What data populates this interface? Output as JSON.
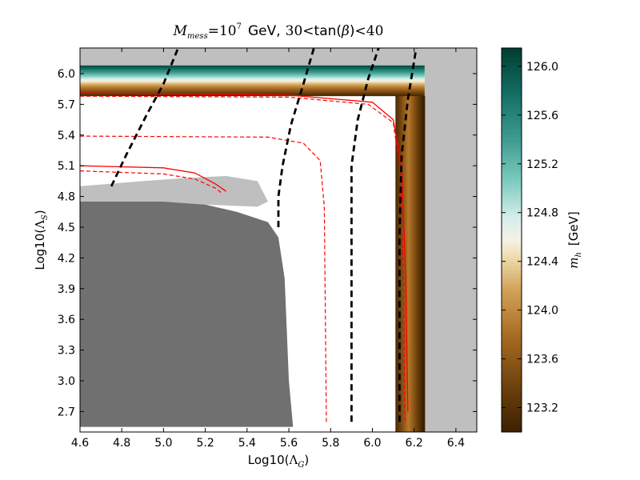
{
  "chart_data": {
    "type": "heatmap",
    "title": {
      "mess_symbol": "M",
      "mess_subscript": "mess",
      "mess_value": "=10",
      "mess_exponent": "7",
      "unit": "GeV,",
      "tan_lower": "30",
      "tan_label": "tan(",
      "beta_symbol": "β",
      "tan_close": ")",
      "tan_upper": "40",
      "lt": "<"
    },
    "xlabel": {
      "prefix": "Log10(",
      "symbol": "Λ",
      "subscript": "G",
      "suffix": ")"
    },
    "ylabel": {
      "prefix": "Log10(",
      "symbol": "Λ",
      "subscript": "S",
      "suffix": ")"
    },
    "xlim": [
      4.6,
      6.5
    ],
    "ylim": [
      2.5,
      6.25
    ],
    "xticks": [
      "4.6",
      "4.8",
      "5.0",
      "5.2",
      "5.4",
      "5.6",
      "5.8",
      "6.0",
      "6.2",
      "6.4"
    ],
    "yticks": [
      "2.7",
      "3.0",
      "3.3",
      "3.6",
      "3.9",
      "4.2",
      "4.5",
      "4.8",
      "5.1",
      "5.4",
      "5.7",
      "6.0"
    ],
    "colorbar": {
      "label": "m",
      "label_subscript": "h",
      "label_unit": "[GeV]",
      "range": [
        123.0,
        126.15
      ],
      "ticks": [
        "123.2",
        "123.6",
        "124.0",
        "124.4",
        "124.8",
        "125.2",
        "125.6",
        "126.0"
      ],
      "colormap": [
        [
          0.0,
          "#3b2103"
        ],
        [
          0.12,
          "#6e420e"
        ],
        [
          0.25,
          "#a86b22"
        ],
        [
          0.37,
          "#d2a25a"
        ],
        [
          0.46,
          "#f0dfb2"
        ],
        [
          0.5,
          "#f5f2e8"
        ],
        [
          0.56,
          "#d4ede9"
        ],
        [
          0.65,
          "#7fccc0"
        ],
        [
          0.76,
          "#3f9c90"
        ],
        [
          0.88,
          "#146e63"
        ],
        [
          1.0,
          "#013d31"
        ]
      ]
    },
    "regions": {
      "excluded_dark_color": "#707070",
      "excluded_light_color": "#bfbfbf",
      "light_gray_right_xmin": 6.25,
      "dark_region": [
        [
          4.6,
          2.55
        ],
        [
          4.6,
          4.75
        ],
        [
          5.0,
          4.75
        ],
        [
          5.2,
          4.72
        ],
        [
          5.35,
          4.65
        ],
        [
          5.5,
          4.55
        ],
        [
          5.55,
          4.4
        ],
        [
          5.58,
          4.0
        ],
        [
          5.6,
          3.0
        ],
        [
          5.62,
          2.55
        ]
      ],
      "light_region": [
        [
          4.6,
          4.75
        ],
        [
          4.6,
          4.9
        ],
        [
          4.9,
          4.95
        ],
        [
          5.1,
          4.98
        ],
        [
          5.3,
          5.0
        ],
        [
          5.45,
          4.95
        ],
        [
          5.5,
          4.75
        ],
        [
          5.45,
          4.7
        ],
        [
          5.2,
          4.72
        ],
        [
          5.0,
          4.75
        ]
      ]
    },
    "band": {
      "top_y": [
        5.78,
        6.08
      ],
      "right_x": [
        6.11,
        6.25
      ],
      "corner_x": 6.25,
      "upper_mh": 126.05,
      "lower_mh": 123.0
    },
    "black_dashed_lines": [
      [
        [
          4.75,
          4.9
        ],
        [
          4.82,
          5.2
        ],
        [
          4.92,
          5.6
        ],
        [
          5.0,
          5.9
        ],
        [
          5.07,
          6.25
        ]
      ],
      [
        [
          5.55,
          4.5
        ],
        [
          5.55,
          4.8
        ],
        [
          5.57,
          5.1
        ],
        [
          5.61,
          5.5
        ],
        [
          5.67,
          5.9
        ],
        [
          5.72,
          6.25
        ]
      ],
      [
        [
          5.9,
          2.6
        ],
        [
          5.9,
          4.2
        ],
        [
          5.9,
          5.1
        ],
        [
          5.93,
          5.55
        ],
        [
          5.98,
          5.95
        ],
        [
          6.03,
          6.25
        ]
      ],
      [
        [
          6.13,
          2.6
        ],
        [
          6.13,
          4.4
        ],
        [
          6.14,
          5.2
        ],
        [
          6.17,
          5.75
        ],
        [
          6.21,
          6.25
        ]
      ]
    ],
    "red_solid_lines": [
      [
        [
          4.6,
          5.81
        ],
        [
          5.6,
          5.79
        ],
        [
          6.0,
          5.72
        ],
        [
          6.1,
          5.55
        ],
        [
          6.14,
          5.1
        ],
        [
          6.16,
          4.0
        ],
        [
          6.17,
          2.7
        ]
      ],
      [
        [
          4.6,
          5.1
        ],
        [
          5.0,
          5.08
        ],
        [
          5.15,
          5.03
        ],
        [
          5.25,
          4.92
        ],
        [
          5.3,
          4.85
        ]
      ]
    ],
    "red_dashed_lines": [
      [
        [
          4.6,
          5.78
        ],
        [
          5.6,
          5.77
        ],
        [
          5.98,
          5.7
        ],
        [
          6.1,
          5.52
        ],
        [
          6.13,
          5.1
        ],
        [
          6.15,
          4.0
        ],
        [
          6.155,
          2.58
        ]
      ],
      [
        [
          4.6,
          5.05
        ],
        [
          5.0,
          5.02
        ],
        [
          5.15,
          4.97
        ],
        [
          5.25,
          4.88
        ],
        [
          5.28,
          4.83
        ]
      ],
      [
        [
          4.6,
          5.39
        ],
        [
          5.5,
          5.38
        ],
        [
          5.67,
          5.32
        ],
        [
          5.75,
          5.15
        ],
        [
          5.77,
          4.7
        ],
        [
          5.78,
          2.58
        ]
      ]
    ]
  }
}
